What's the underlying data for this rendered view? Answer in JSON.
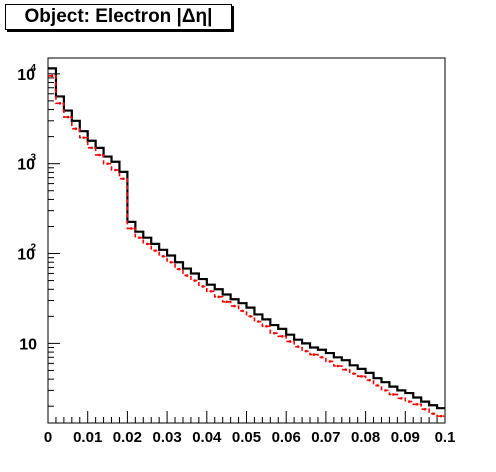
{
  "chart_data": {
    "type": "histogram",
    "title": "Object: Electron |Δη|",
    "xlabel": "",
    "ylabel": "",
    "xlim": [
      0,
      0.1
    ],
    "ylim": [
      1.3,
      15000
    ],
    "y_scale": "log",
    "grid": false,
    "legend": "none",
    "x_tick_labels": [
      "0",
      "0.01",
      "0.02",
      "0.03",
      "0.04",
      "0.05",
      "0.06",
      "0.07",
      "0.08",
      "0.09",
      "0.1"
    ],
    "y_tick_labels": [
      {
        "value": 10000,
        "base": "10",
        "exp": "4"
      },
      {
        "value": 1000,
        "base": "10",
        "exp": "3"
      },
      {
        "value": 100,
        "base": "10",
        "exp": "2"
      },
      {
        "value": 10,
        "base": "10",
        "exp": ""
      }
    ],
    "bin_edges": [
      0,
      0.002,
      0.004,
      0.006,
      0.008,
      0.01,
      0.012,
      0.014,
      0.016,
      0.018,
      0.02,
      0.022,
      0.024,
      0.026,
      0.028,
      0.03,
      0.032,
      0.034,
      0.036,
      0.038,
      0.04,
      0.042,
      0.044,
      0.046,
      0.048,
      0.05,
      0.052,
      0.054,
      0.056,
      0.058,
      0.06,
      0.062,
      0.064,
      0.066,
      0.068,
      0.07,
      0.072,
      0.074,
      0.076,
      0.078,
      0.08,
      0.082,
      0.084,
      0.086,
      0.088,
      0.09,
      0.092,
      0.094,
      0.096,
      0.098,
      0.1
    ],
    "series": [
      {
        "color": "#000000",
        "style": "solid",
        "values": [
          11500,
          5600,
          3900,
          3000,
          2300,
          1800,
          1500,
          1200,
          1050,
          810,
          225,
          175,
          150,
          128,
          110,
          95,
          80,
          68,
          60,
          52,
          45,
          40,
          35,
          31,
          28,
          25,
          21,
          18.5,
          16,
          14.5,
          12.5,
          11,
          10,
          9,
          8.5,
          7.8,
          7.0,
          6.5,
          5.7,
          5.2,
          4.7,
          4.1,
          3.7,
          3.3,
          3.0,
          2.8,
          2.5,
          2.25,
          2.05,
          1.9
        ]
      },
      {
        "color": "#ff0000",
        "style": "dashed",
        "values": [
          9500,
          4700,
          3300,
          2450,
          1950,
          1500,
          1250,
          1000,
          850,
          680,
          190,
          150,
          128,
          108,
          93,
          80,
          67,
          57,
          50,
          43,
          38,
          33,
          29,
          26,
          23,
          20,
          17.5,
          15.5,
          13,
          12,
          10.5,
          9.2,
          8.2,
          7.5,
          7.0,
          6.3,
          5.6,
          5.1,
          4.6,
          4.3,
          3.9,
          3.4,
          3.0,
          2.7,
          2.45,
          2.25,
          2.1,
          1.85,
          1.65,
          1.55
        ]
      }
    ]
  }
}
